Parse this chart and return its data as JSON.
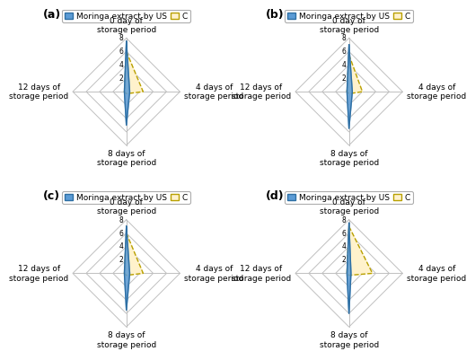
{
  "subplots": [
    {
      "label": "(a)",
      "US": [
        7.5,
        0.5,
        5.0,
        0.3
      ],
      "C": [
        6.0,
        2.5,
        0.3,
        0.3
      ]
    },
    {
      "label": "(b)",
      "US": [
        7.0,
        0.5,
        5.5,
        0.3
      ],
      "C": [
        5.5,
        2.0,
        0.3,
        0.3
      ]
    },
    {
      "label": "(c)",
      "US": [
        7.0,
        0.5,
        5.5,
        0.3
      ],
      "C": [
        6.0,
        2.5,
        0.3,
        0.3
      ]
    },
    {
      "label": "(d)",
      "US": [
        7.5,
        0.3,
        6.0,
        0.3
      ],
      "C": [
        7.0,
        3.5,
        0.3,
        0.3
      ]
    }
  ],
  "categories": [
    "0 day of\nstorage period",
    "4 days of\nstorage period",
    "8 days of\nstorage period",
    "12 days of\nstorage period"
  ],
  "color_US": "#5B9BD5",
  "color_C": "#FFF2CC",
  "edge_US": "#2E6FA3",
  "edge_C": "#B8A000",
  "r_max": 8,
  "r_ticks": [
    2,
    4,
    6,
    8
  ],
  "legend_label_US": "Moringa extract by US",
  "legend_label_C": "C",
  "background_color": "#ffffff",
  "grid_color": "#C0C0C0",
  "label_fontsize": 6.5,
  "tick_fontsize": 5.5,
  "legend_fontsize": 6.5
}
